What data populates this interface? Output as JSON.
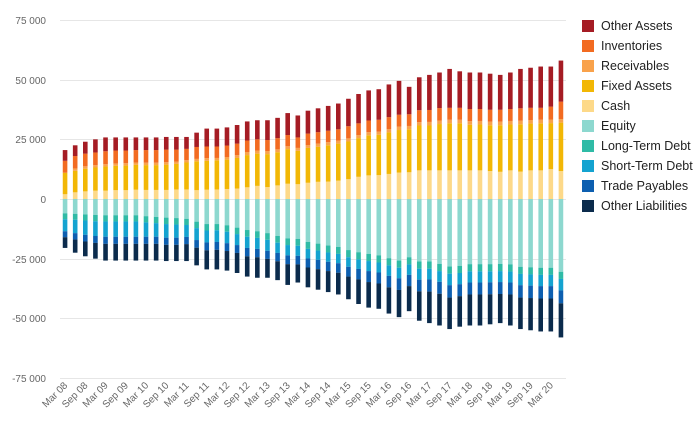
{
  "chart_data": {
    "type": "bar",
    "stacked": true,
    "yticks": [
      "-75 000",
      "-50 000",
      "-25 000",
      "0",
      "25 000",
      "50 000",
      "75 000"
    ],
    "ylim": [
      -75000,
      75000
    ],
    "ytick_values": [
      -75000,
      -50000,
      -25000,
      0,
      25000,
      50000,
      75000
    ],
    "grid": true,
    "legend_placement": "right",
    "xtick_labels": [
      "Mar 08",
      "Sep 08",
      "Mar 09",
      "Sep 09",
      "Mar 10",
      "Sep 10",
      "Mar 11",
      "Sep 11",
      "Mar 12",
      "Sep 12",
      "Mar 13",
      "Sep 13",
      "Mar 14",
      "Sep 14",
      "Mar 15",
      "Sep 15",
      "Mar 16",
      "Sep 16",
      "Mar 17",
      "Sep 17",
      "Mar 18",
      "Sep 18",
      "Mar 19",
      "Sep 19",
      "Mar 20"
    ],
    "x": [
      "Mar 08",
      "Jun 08",
      "Sep 08",
      "Dec 08",
      "Mar 09",
      "Jun 09",
      "Sep 09",
      "Dec 09",
      "Mar 10",
      "Jun 10",
      "Sep 10",
      "Dec 10",
      "Mar 11",
      "Jun 11",
      "Sep 11",
      "Dec 11",
      "Mar 12",
      "Jun 12",
      "Sep 12",
      "Dec 12",
      "Mar 13",
      "Jun 13",
      "Sep 13",
      "Dec 13",
      "Mar 14",
      "Jun 14",
      "Sep 14",
      "Dec 14",
      "Mar 15",
      "Jun 15",
      "Sep 15",
      "Dec 15",
      "Mar 16",
      "Jun 16",
      "Sep 16",
      "Dec 16",
      "Mar 17",
      "Jun 17",
      "Sep 17",
      "Dec 17",
      "Mar 18",
      "Jun 18",
      "Sep 18",
      "Dec 18",
      "Mar 19",
      "Jun 19",
      "Sep 19",
      "Dec 19",
      "Mar 20",
      "Jun 20"
    ],
    "asset_series": [
      {
        "name": "Other Assets",
        "color": "#a51c24"
      },
      {
        "name": "Inventories",
        "color": "#f26b21"
      },
      {
        "name": "Receivables",
        "color": "#f9a24b"
      },
      {
        "name": "Fixed Assets",
        "color": "#f2b705"
      },
      {
        "name": "Cash",
        "color": "#fdd989"
      }
    ],
    "liability_series": [
      {
        "name": "Equity",
        "color": "#8dd8cf"
      },
      {
        "name": "Long-Term Debt",
        "color": "#2fbba6"
      },
      {
        "name": "Short-Term Debt",
        "color": "#14a3d0"
      },
      {
        "name": "Trade Payables",
        "color": "#0d5fb0"
      },
      {
        "name": "Other Liabilities",
        "color": "#0b2b4c"
      }
    ],
    "totals": [
      20500,
      22500,
      24000,
      25000,
      25800,
      25800,
      25800,
      25800,
      25800,
      25800,
      26000,
      26000,
      26000,
      27800,
      29500,
      29500,
      30000,
      31000,
      32500,
      33000,
      33000,
      34000,
      36000,
      35000,
      37000,
      38000,
      39000,
      40000,
      42000,
      44000,
      45500,
      46000,
      48000,
      49500,
      47000,
      51000,
      52000,
      53000,
      54500,
      53500,
      53000,
      53000,
      52500,
      52000,
      53000,
      54500,
      55000,
      55500,
      55500,
      58000
    ],
    "assets": {
      "Other Assets": [
        4500,
        4500,
        5000,
        5500,
        5800,
        5500,
        5500,
        5300,
        5300,
        5300,
        5300,
        5300,
        5000,
        6000,
        7500,
        7500,
        7600,
        7800,
        8000,
        8000,
        8300,
        8500,
        9200,
        9200,
        9600,
        10000,
        10400,
        10800,
        11500,
        12300,
        12600,
        12800,
        13700,
        14200,
        11500,
        13800,
        14700,
        14900,
        16300,
        15300,
        15300,
        15300,
        15100,
        14600,
        15300,
        16500,
        16800,
        17300,
        16800,
        17200
      ],
      "Inventories": [
        5000,
        5200,
        5300,
        5300,
        5400,
        5400,
        5300,
        5200,
        5300,
        5300,
        5300,
        5000,
        4700,
        5000,
        4900,
        4800,
        4800,
        4800,
        4800,
        4700,
        4600,
        4700,
        4700,
        4400,
        4800,
        4800,
        4800,
        4700,
        5100,
        4900,
        4900,
        5000,
        5000,
        5000,
        4900,
        5000,
        5000,
        5200,
        5000,
        5000,
        5100,
        5000,
        5000,
        5000,
        5000,
        5200,
        5100,
        5000,
        5400,
        7300
      ],
      "Receivables": [
        0,
        1000,
        1000,
        1000,
        1000,
        1000,
        1000,
        1000,
        1000,
        1000,
        1000,
        1000,
        1000,
        1000,
        1100,
        1000,
        1100,
        1200,
        1300,
        1300,
        1300,
        1200,
        1200,
        1200,
        1200,
        1300,
        1300,
        1300,
        1300,
        1300,
        1300,
        1300,
        1400,
        1400,
        1400,
        1400,
        1500,
        1500,
        1500,
        1500,
        1500,
        1500,
        1500,
        1500,
        1500,
        1500,
        1500,
        1500,
        1500,
        1500
      ],
      "Fixed Assets": [
        9000,
        9000,
        9500,
        9700,
        10100,
        10200,
        10300,
        10400,
        10400,
        10400,
        10600,
        10700,
        11300,
        12100,
        12100,
        12200,
        12300,
        12800,
        13500,
        13500,
        13800,
        13900,
        14500,
        14000,
        14600,
        14700,
        15200,
        15500,
        15800,
        16200,
        16800,
        16900,
        17400,
        17800,
        18000,
        18800,
        18800,
        19400,
        19700,
        19700,
        19100,
        19200,
        19200,
        19500,
        19200,
        19800,
        19600,
        19700,
        19300,
        20300
      ],
      "Cash": [
        2000,
        2800,
        3200,
        3500,
        3500,
        3700,
        3700,
        3900,
        3800,
        3800,
        3800,
        4000,
        4000,
        3700,
        3900,
        4000,
        4200,
        4400,
        4900,
        5500,
        5000,
        5700,
        6400,
        6200,
        6800,
        7200,
        7300,
        7700,
        8300,
        9300,
        9900,
        10000,
        10500,
        11100,
        11200,
        12000,
        12000,
        12000,
        12000,
        12000,
        12000,
        12000,
        11700,
        11400,
        12000,
        11500,
        12000,
        12000,
        12500,
        11700
      ]
    },
    "liabilities": {
      "Equity": [
        6000,
        6200,
        6500,
        6700,
        6800,
        6800,
        6800,
        6800,
        7200,
        7500,
        7800,
        8000,
        8300,
        9500,
        10500,
        10500,
        11000,
        12000,
        13000,
        13500,
        14300,
        15500,
        16500,
        16700,
        18000,
        18700,
        19500,
        20100,
        21400,
        22300,
        23000,
        23600,
        24800,
        25800,
        24400,
        26200,
        26200,
        27200,
        28300,
        28000,
        27300,
        27300,
        27300,
        27200,
        27400,
        28400,
        28600,
        28800,
        28800,
        30500
      ],
      "Long-Term Debt": [
        2500,
        2500,
        2500,
        2600,
        2600,
        2600,
        2600,
        2600,
        2600,
        2600,
        2700,
        2700,
        2600,
        2700,
        2700,
        2600,
        2700,
        2700,
        2800,
        2800,
        2800,
        2800,
        2800,
        2900,
        2900,
        2900,
        2900,
        2900,
        3000,
        3000,
        3000,
        3000,
        3000,
        3000,
        3000,
        3000,
        3000,
        3000,
        3000,
        3000,
        3000,
        3000,
        3000,
        3000,
        3000,
        3000,
        3000,
        3000,
        3000,
        3000
      ],
      "Short-Term Debt": [
        5000,
        5600,
        6000,
        6200,
        6400,
        6400,
        6400,
        6400,
        6000,
        5700,
        5700,
        5500,
        5000,
        5000,
        5000,
        4900,
        4800,
        4600,
        4700,
        4600,
        4600,
        4300,
        4300,
        4200,
        4000,
        3900,
        3900,
        3900,
        4000,
        4000,
        4200,
        4200,
        4400,
        4400,
        4400,
        4600,
        4500,
        4500,
        4800,
        4700,
        4700,
        4700,
        4600,
        4600,
        4600,
        4700,
        4700,
        4700,
        4700,
        4800
      ],
      "Trade Payables": [
        2500,
        2700,
        2800,
        2900,
        3000,
        3000,
        3000,
        3000,
        3000,
        3000,
        3000,
        3000,
        3000,
        3200,
        3300,
        3300,
        3300,
        3300,
        3500,
        3500,
        3400,
        3500,
        3700,
        3600,
        3800,
        3900,
        3900,
        4000,
        4100,
        4400,
        4600,
        4600,
        4800,
        4900,
        4700,
        4900,
        5100,
        5000,
        5200,
        5000,
        5000,
        5000,
        5000,
        5000,
        5000,
        5200,
        5200,
        5200,
        5200,
        5400
      ],
      "Other Liabilities": [
        4500,
        5500,
        6200,
        6600,
        7000,
        7000,
        7000,
        7000,
        7000,
        7000,
        6800,
        6800,
        7100,
        7400,
        8000,
        8200,
        8200,
        8400,
        8500,
        8600,
        7900,
        7900,
        8700,
        7600,
        8300,
        8600,
        8800,
        9100,
        9500,
        10300,
        10700,
        10600,
        11000,
        11400,
        10500,
        12300,
        13200,
        13300,
        13200,
        12800,
        13000,
        13000,
        12600,
        12200,
        13000,
        13200,
        13500,
        13800,
        13800,
        14300
      ]
    }
  }
}
